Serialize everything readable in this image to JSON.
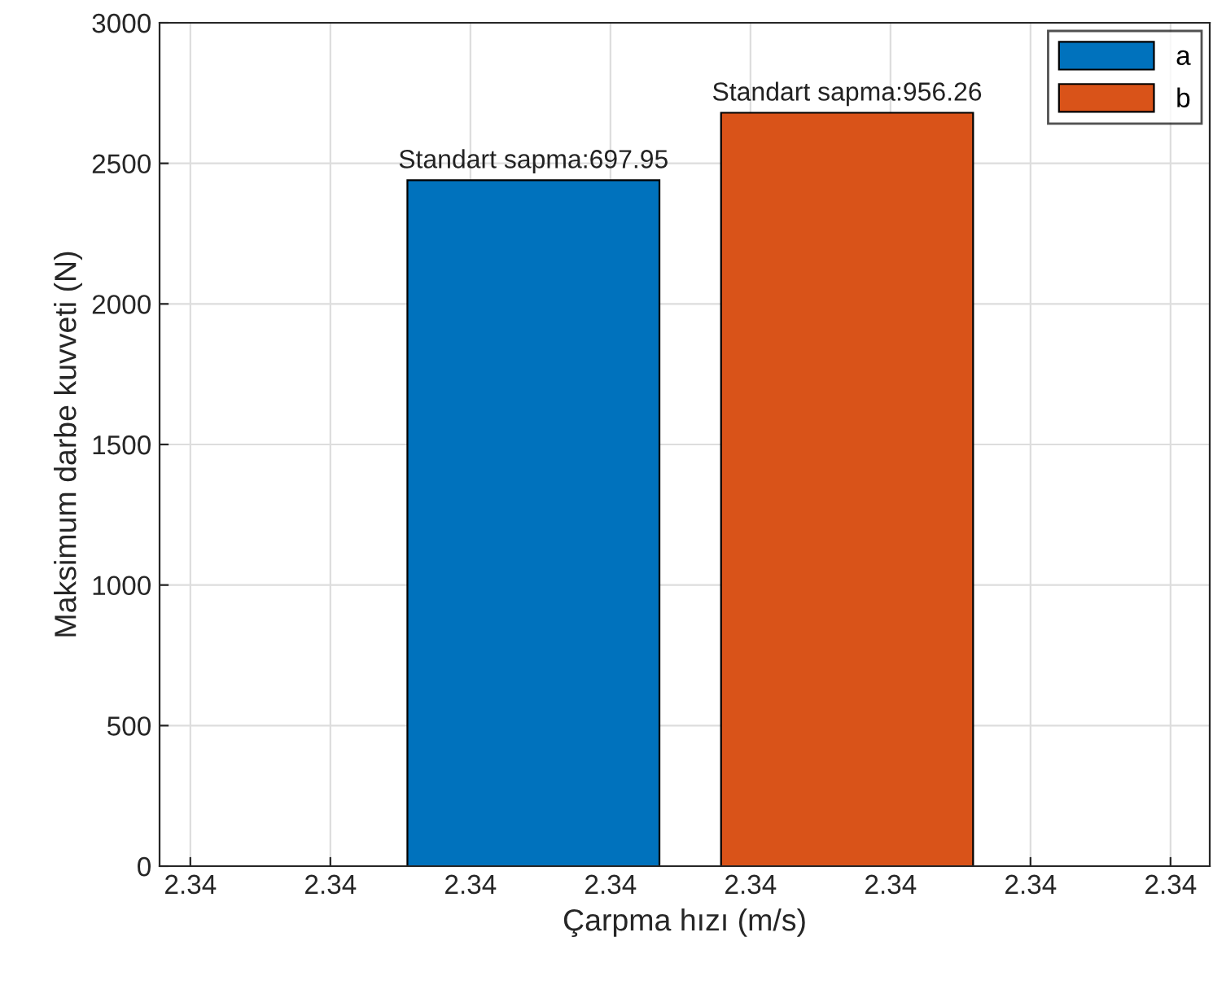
{
  "chart_data": {
    "type": "bar",
    "xlabel": "Çarpma hızı (m/s)",
    "ylabel": "Maksimum darbe kuvveti (N)",
    "series": [
      {
        "name": "a",
        "color": "#0072bd",
        "x": [
          2.33895
        ],
        "values": [
          2440
        ]
      },
      {
        "name": "b",
        "color": "#d95319",
        "x": [
          2.34119
        ],
        "values": [
          2680
        ]
      }
    ],
    "annotations": [
      {
        "text": "Standart sapma:697.95",
        "x": 2.33895,
        "y": 2440
      },
      {
        "text": "Standart sapma:956.26",
        "x": 2.34119,
        "y": 2680
      }
    ],
    "xlim": [
      2.33628,
      2.34378
    ],
    "xticks": [
      {
        "value": 2.3365,
        "label": "2.34"
      },
      {
        "value": 2.3375,
        "label": "2.34"
      },
      {
        "value": 2.3385,
        "label": "2.34"
      },
      {
        "value": 2.3395,
        "label": "2.34"
      },
      {
        "value": 2.3405,
        "label": "2.34"
      },
      {
        "value": 2.3415,
        "label": "2.34"
      },
      {
        "value": 2.3425,
        "label": "2.34"
      },
      {
        "value": 2.3435,
        "label": "2.34"
      }
    ],
    "ylim": [
      0,
      3000
    ],
    "yticks": [
      0,
      500,
      1000,
      1500,
      2000,
      2500,
      3000
    ],
    "grid": true,
    "legend": "top right"
  }
}
